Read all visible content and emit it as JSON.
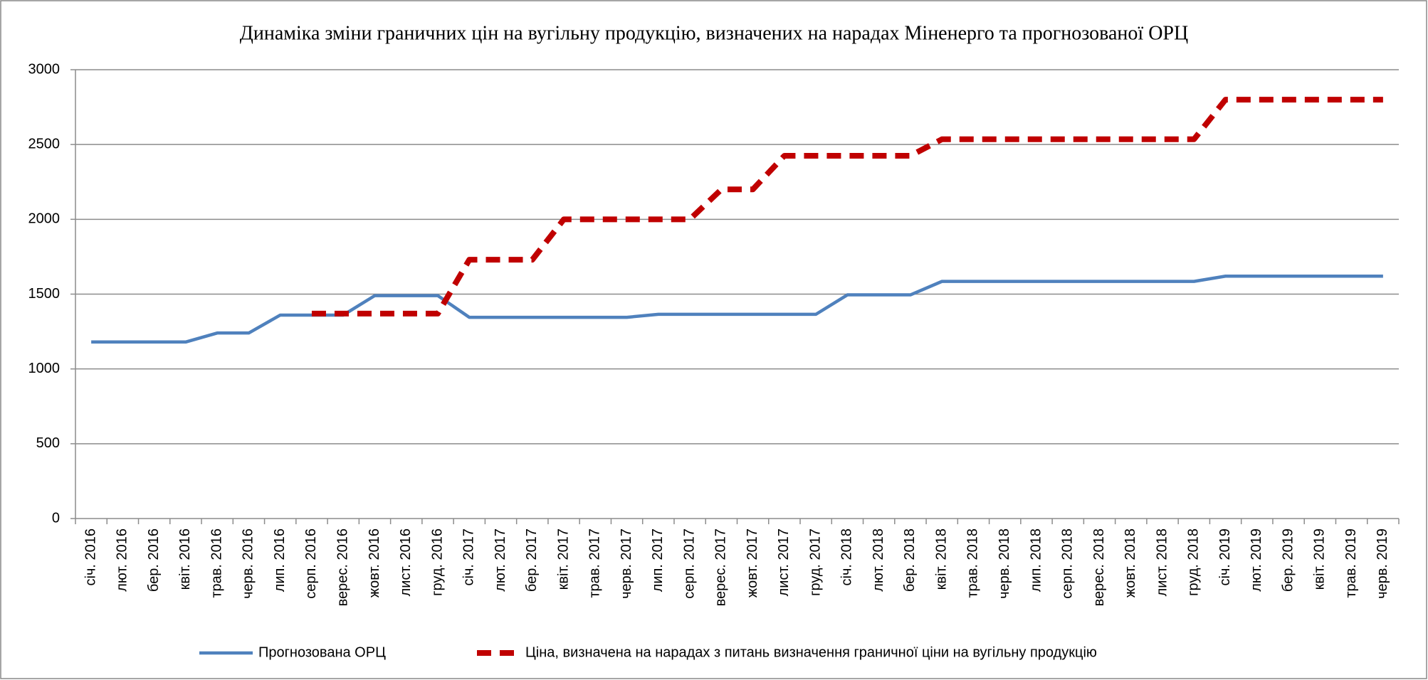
{
  "chart_data": {
    "type": "line",
    "title": "Динаміка зміни граничних цін на вугільну продукцію, визначених на нарадах Міненерго та прогнозованої  ОРЦ",
    "categories": [
      "січ. 2016",
      "лют. 2016",
      "бер. 2016",
      "квіт. 2016",
      "трав. 2016",
      "черв. 2016",
      "лип. 2016",
      "серп. 2016",
      "верес. 2016",
      "жовт. 2016",
      "лист. 2016",
      "груд. 2016",
      "січ. 2017",
      "лют. 2017",
      "бер. 2017",
      "квіт. 2017",
      "трав. 2017",
      "черв. 2017",
      "лип. 2017",
      "серп. 2017",
      "верес. 2017",
      "жовт. 2017",
      "лист. 2017",
      "груд. 2017",
      "січ. 2018",
      "лют. 2018",
      "бер. 2018",
      "квіт. 2018",
      "трав. 2018",
      "черв. 2018",
      "лип. 2018",
      "серп. 2018",
      "верес. 2018",
      "жовт. 2018",
      "лист. 2018",
      "груд. 2018",
      "січ. 2019",
      "лют. 2019",
      "бер. 2019",
      "квіт. 2019",
      "трав. 2019",
      "черв. 2019"
    ],
    "series": [
      {
        "name": "Прогнозована ОРЦ",
        "color": "#4f81bd",
        "dash": false,
        "values": [
          1180,
          1180,
          1180,
          1180,
          1240,
          1240,
          1360,
          1360,
          1360,
          1490,
          1490,
          1490,
          1345,
          1345,
          1345,
          1345,
          1345,
          1345,
          1365,
          1365,
          1365,
          1365,
          1365,
          1365,
          1495,
          1495,
          1495,
          1585,
          1585,
          1585,
          1585,
          1585,
          1585,
          1585,
          1585,
          1585,
          1620,
          1620,
          1620,
          1620,
          1620,
          1620
        ]
      },
      {
        "name": "Ціна, визначена на нарадах з питань визначення граничної ціни на вугільну продукцію",
        "color": "#c00000",
        "dash": true,
        "values": [
          null,
          null,
          null,
          null,
          null,
          null,
          null,
          1370,
          1370,
          1370,
          1370,
          1370,
          1730,
          1730,
          1730,
          2000,
          2000,
          2000,
          2000,
          2000,
          2200,
          2200,
          2425,
          2425,
          2425,
          2425,
          2425,
          2535,
          2535,
          2535,
          2535,
          2535,
          2535,
          2535,
          2535,
          2535,
          2800,
          2800,
          2800,
          2800,
          2800,
          2800
        ]
      }
    ],
    "ylim": [
      0,
      3000
    ],
    "yticks": [
      0,
      500,
      1000,
      1500,
      2000,
      2500,
      3000
    ],
    "grid": true,
    "legend": "bottom"
  }
}
